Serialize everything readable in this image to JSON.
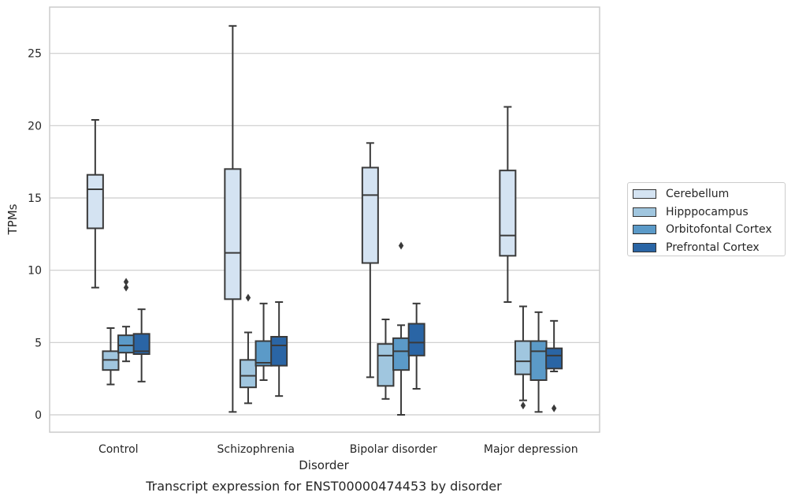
{
  "chart_data": {
    "type": "box",
    "title": "",
    "xlabel": "Disorder",
    "ylabel": "TPMs",
    "caption": "Transcript expression for ENST00000474453 by disorder",
    "ylim": [
      -1.2,
      28.2
    ],
    "yticks": [
      0,
      5,
      10,
      15,
      20,
      25
    ],
    "grid": true,
    "legend_position": "right",
    "categories": [
      "Control",
      "Schizophrenia",
      "Bipolar disorder",
      "Major depression"
    ],
    "series": [
      {
        "name": "Cerebellum",
        "color": "#d4e3f2",
        "boxes": [
          {
            "whisker_low": 8.8,
            "q1": 12.9,
            "median": 15.6,
            "q3": 16.6,
            "whisker_high": 20.4,
            "outliers": []
          },
          {
            "whisker_low": 0.2,
            "q1": 8.0,
            "median": 11.2,
            "q3": 17.0,
            "whisker_high": 26.9,
            "outliers": []
          },
          {
            "whisker_low": 2.6,
            "q1": 10.5,
            "median": 15.2,
            "q3": 17.1,
            "whisker_high": 18.8,
            "outliers": []
          },
          {
            "whisker_low": 7.8,
            "q1": 11.0,
            "median": 12.4,
            "q3": 16.9,
            "whisker_high": 21.3,
            "outliers": []
          }
        ]
      },
      {
        "name": "Hipppocampus",
        "color": "#a0c6df",
        "boxes": [
          {
            "whisker_low": 2.1,
            "q1": 3.1,
            "median": 3.8,
            "q3": 4.4,
            "whisker_high": 6.0,
            "outliers": []
          },
          {
            "whisker_low": 0.8,
            "q1": 1.9,
            "median": 2.7,
            "q3": 3.8,
            "whisker_high": 5.7,
            "outliers": [
              8.1
            ]
          },
          {
            "whisker_low": 1.1,
            "q1": 2.0,
            "median": 4.1,
            "q3": 4.9,
            "whisker_high": 6.6,
            "outliers": []
          },
          {
            "whisker_low": 1.0,
            "q1": 2.8,
            "median": 3.7,
            "q3": 5.1,
            "whisker_high": 7.5,
            "outliers": [
              0.65
            ]
          }
        ]
      },
      {
        "name": "Orbitofontal Cortex",
        "color": "#5b9ac8",
        "boxes": [
          {
            "whisker_low": 3.7,
            "q1": 4.3,
            "median": 4.8,
            "q3": 5.5,
            "whisker_high": 6.1,
            "outliers": [
              8.8,
              9.2
            ]
          },
          {
            "whisker_low": 2.4,
            "q1": 3.4,
            "median": 3.6,
            "q3": 5.1,
            "whisker_high": 7.7,
            "outliers": []
          },
          {
            "whisker_low": 0.0,
            "q1": 3.1,
            "median": 4.4,
            "q3": 5.3,
            "whisker_high": 6.2,
            "outliers": [
              11.7
            ]
          },
          {
            "whisker_low": 0.2,
            "q1": 2.4,
            "median": 4.4,
            "q3": 5.1,
            "whisker_high": 7.1,
            "outliers": []
          }
        ]
      },
      {
        "name": "Prefrontal Cortex",
        "color": "#2a65a5",
        "boxes": [
          {
            "whisker_low": 2.3,
            "q1": 4.2,
            "median": 4.4,
            "q3": 5.6,
            "whisker_high": 7.3,
            "outliers": []
          },
          {
            "whisker_low": 1.3,
            "q1": 3.4,
            "median": 4.8,
            "q3": 5.4,
            "whisker_high": 7.8,
            "outliers": []
          },
          {
            "whisker_low": 1.8,
            "q1": 4.1,
            "median": 5.0,
            "q3": 6.3,
            "whisker_high": 7.7,
            "outliers": []
          },
          {
            "whisker_low": 3.0,
            "q1": 3.2,
            "median": 4.1,
            "q3": 4.6,
            "whisker_high": 6.5,
            "outliers": [
              0.45
            ]
          }
        ]
      }
    ]
  }
}
